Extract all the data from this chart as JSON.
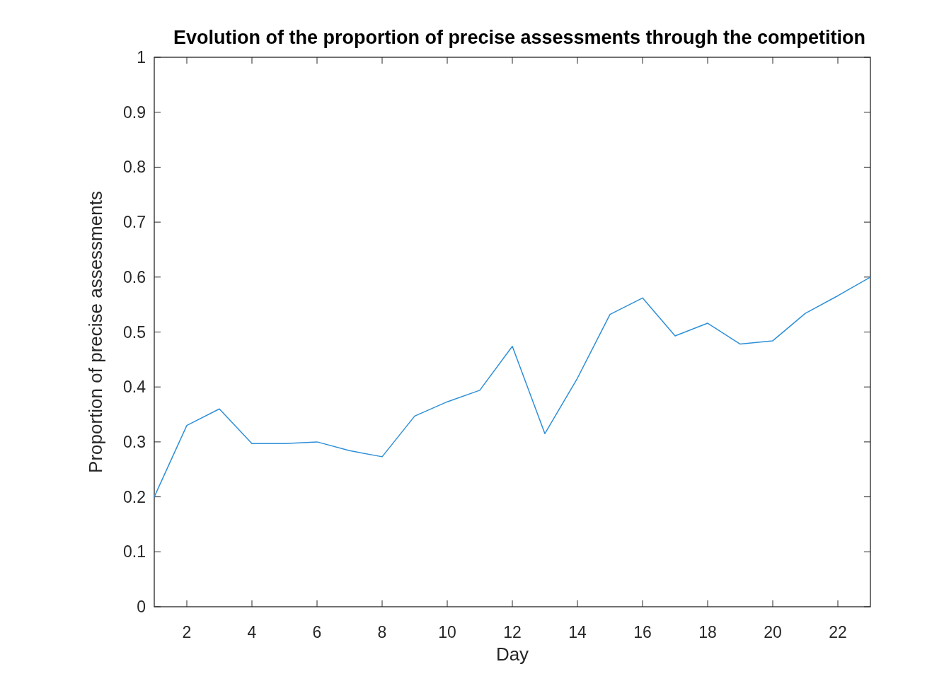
{
  "chart_data": {
    "type": "line",
    "title": "Evolution of the proportion of precise assessments through the competition",
    "xlabel": "Day",
    "ylabel": "Proportion of precise assessments",
    "x": [
      1,
      2,
      3,
      4,
      5,
      6,
      7,
      8,
      9,
      10,
      11,
      12,
      13,
      14,
      15,
      16,
      17,
      18,
      19,
      20,
      21,
      22,
      23
    ],
    "series": [
      {
        "color": "#2e8fd8",
        "values": [
          0.2,
          0.33,
          0.36,
          0.297,
          0.297,
          0.3,
          0.284,
          0.273,
          0.347,
          0.373,
          0.394,
          0.474,
          0.315,
          0.416,
          0.532,
          0.562,
          0.493,
          0.516,
          0.478,
          0.484,
          0.534,
          0.566,
          0.6
        ]
      }
    ],
    "xlim": [
      1,
      23
    ],
    "xticks": [
      2,
      4,
      6,
      8,
      10,
      12,
      14,
      16,
      18,
      20,
      22
    ],
    "ylim": [
      0,
      1
    ],
    "yticks": [
      0,
      0.1,
      0.2,
      0.3,
      0.4,
      0.5,
      0.6,
      0.7,
      0.8,
      0.9,
      1
    ],
    "grid": false,
    "marker": "none",
    "line_style": "solid"
  }
}
